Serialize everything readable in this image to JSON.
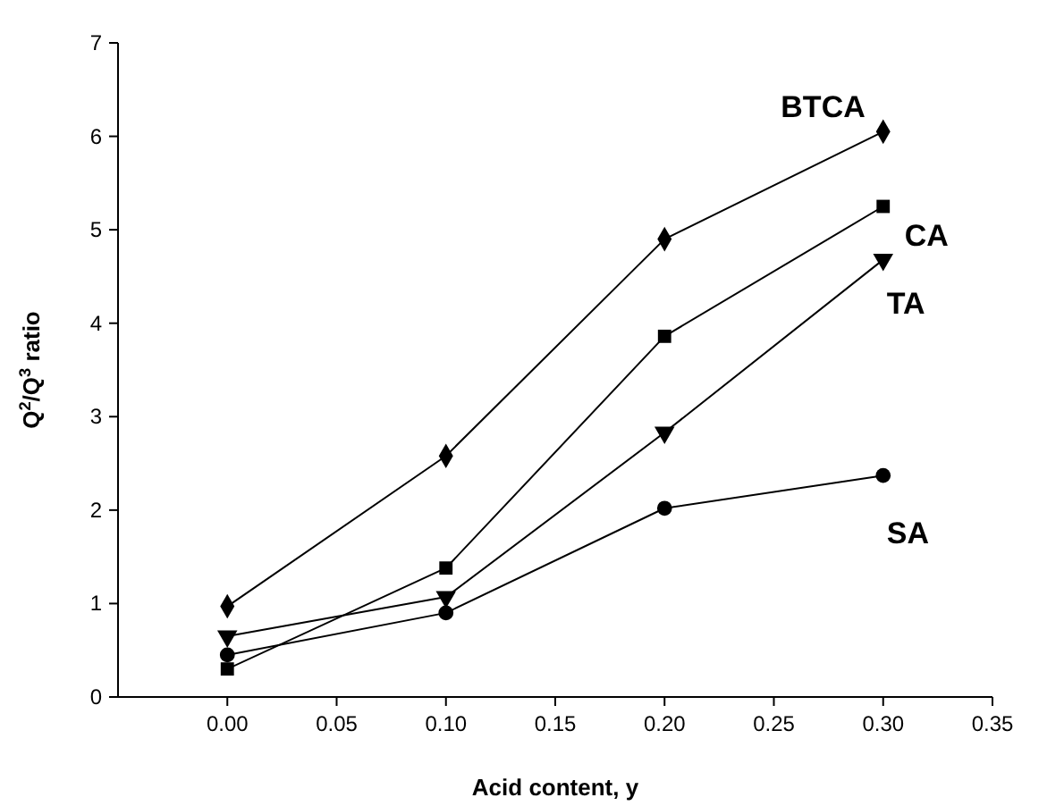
{
  "chart_data": {
    "type": "line",
    "xlabel": "Acid content, y",
    "ylabel": "Q$^{2}$/Q$^{3}$ ratio",
    "x": [
      0,
      0.1,
      0.2,
      0.3
    ],
    "xlim": [
      -0.05,
      0.35
    ],
    "xticks": [
      {
        "value": 0,
        "label": "0.00"
      },
      {
        "value": 0.05,
        "label": "0.05"
      },
      {
        "value": 0.1,
        "label": "0.10"
      },
      {
        "value": 0.15,
        "label": "0.15"
      },
      {
        "value": 0.2,
        "label": "0.20"
      },
      {
        "value": 0.25,
        "label": "0.25"
      },
      {
        "value": 0.3,
        "label": "0.30"
      },
      {
        "value": 0.35,
        "label": "0.35"
      }
    ],
    "ylim": [
      0,
      7
    ],
    "yticks": [
      0,
      1,
      2,
      3,
      4,
      5,
      6,
      7
    ],
    "grid": false,
    "series": [
      {
        "name": "BTCA",
        "color": "#000000",
        "marker": "diamond",
        "values": [
          0.97,
          2.58,
          4.9,
          6.05
        ]
      },
      {
        "name": "CA",
        "color": "#000000",
        "marker": "square",
        "values": [
          0.3,
          1.38,
          3.86,
          5.25
        ]
      },
      {
        "name": "TA",
        "color": "#000000",
        "marker": "triangle",
        "values": [
          0.65,
          1.07,
          2.83,
          4.68
        ]
      },
      {
        "name": "SA",
        "color": "#000000",
        "marker": "circle",
        "values": [
          0.45,
          0.9,
          2.02,
          2.37
        ]
      }
    ]
  }
}
